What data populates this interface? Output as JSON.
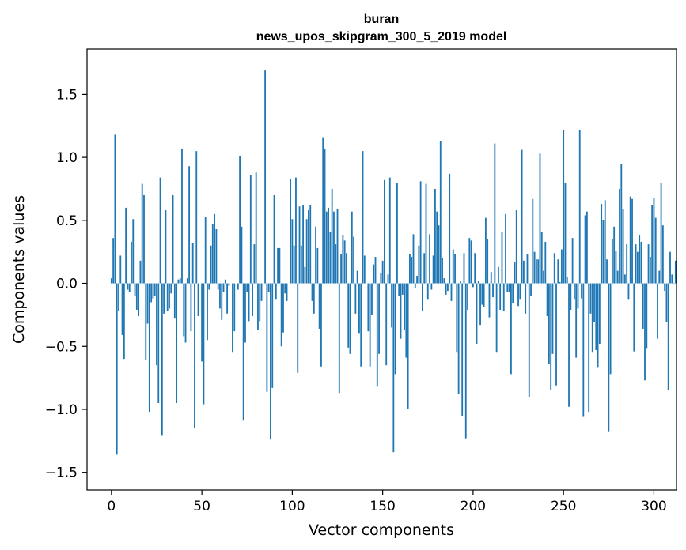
{
  "chart_data": {
    "type": "bar",
    "title": "buran",
    "subtitle": "news_upos_skipgram_300_5_2019 model",
    "xlabel": "Vector components",
    "ylabel": "Components values",
    "xlim": [
      -13.5,
      312.5
    ],
    "ylim": [
      -1.64,
      1.86
    ],
    "xticks": [
      0,
      50,
      100,
      150,
      200,
      250,
      300
    ],
    "xtick_labels": [
      "0",
      "50",
      "100",
      "150",
      "200",
      "250",
      "300"
    ],
    "yticks": [
      -1.5,
      -1.0,
      -0.5,
      0.0,
      0.5,
      1.0,
      1.5
    ],
    "ytick_labels": [
      "−1.5",
      "−1.0",
      "−0.5",
      "0.0",
      "0.5",
      "1.0",
      "1.5"
    ],
    "bar_color": "#1f77b4",
    "values": [
      0.04,
      0.36,
      1.18,
      -1.36,
      -0.22,
      0.22,
      -0.41,
      -0.6,
      0.6,
      -0.05,
      -0.07,
      0.33,
      0.51,
      -0.1,
      -0.21,
      -0.26,
      0.18,
      0.79,
      0.7,
      -0.61,
      -0.32,
      -1.02,
      -0.15,
      -0.12,
      -0.1,
      -0.65,
      -0.95,
      0.84,
      -1.21,
      -0.24,
      0.58,
      -0.22,
      -0.2,
      -0.08,
      0.7,
      -0.28,
      -0.95,
      0.03,
      0.04,
      1.07,
      -0.42,
      -0.47,
      0.04,
      0.93,
      -0.38,
      0.32,
      -1.15,
      1.05,
      -0.26,
      0.0,
      -0.62,
      -0.96,
      0.53,
      -0.45,
      -0.05,
      0.3,
      0.47,
      0.55,
      0.43,
      -0.05,
      -0.2,
      -0.29,
      -0.07,
      0.03,
      -0.24,
      -0.02,
      0.0,
      -0.55,
      -0.38,
      0.0,
      -0.05,
      1.01,
      0.45,
      -1.09,
      -0.47,
      -0.07,
      -0.3,
      0.86,
      -0.26,
      0.31,
      0.88,
      -0.37,
      -0.3,
      -0.14,
      0.0,
      1.69,
      -0.86,
      -0.07,
      -1.24,
      -0.83,
      0.7,
      -0.13,
      0.28,
      0.28,
      -0.5,
      -0.39,
      -0.08,
      -0.14,
      0.0,
      0.83,
      0.51,
      0.3,
      0.84,
      -0.71,
      0.61,
      0.3,
      0.62,
      0.13,
      0.51,
      0.58,
      0.62,
      -0.14,
      -0.24,
      0.45,
      0.28,
      -0.36,
      -0.66,
      1.16,
      1.07,
      0.57,
      0.6,
      0.41,
      0.75,
      0.57,
      0.31,
      0.59,
      -0.87,
      0.23,
      0.38,
      0.34,
      0.24,
      -0.51,
      -0.56,
      0.57,
      0.37,
      -0.24,
      0.1,
      -0.4,
      -0.66,
      1.05,
      0.22,
      0.0,
      -0.38,
      -0.66,
      -0.25,
      0.15,
      0.21,
      -0.82,
      -0.56,
      0.08,
      0.18,
      0.82,
      -0.65,
      0.07,
      0.84,
      -0.35,
      -1.34,
      -0.72,
      0.8,
      -0.1,
      -0.44,
      -0.09,
      -0.37,
      -0.59,
      -1.0,
      0.23,
      0.21,
      0.39,
      -0.04,
      0.06,
      0.3,
      0.81,
      -0.22,
      0.24,
      0.79,
      -0.13,
      0.39,
      -0.05,
      0.22,
      0.75,
      0.57,
      0.46,
      1.13,
      0.2,
      0.04,
      -0.09,
      -0.06,
      0.87,
      -0.14,
      0.27,
      0.23,
      -0.55,
      -0.88,
      0.02,
      -1.05,
      0.24,
      -1.23,
      -0.21,
      0.36,
      0.34,
      -0.03,
      0.24,
      -0.48,
      0.02,
      -0.33,
      -0.17,
      -0.19,
      0.52,
      0.35,
      -0.27,
      0.09,
      -0.11,
      1.11,
      -0.55,
      0.13,
      -0.21,
      0.41,
      -0.22,
      0.55,
      -0.07,
      -0.07,
      -0.72,
      -0.16,
      0.17,
      0.58,
      -0.18,
      -0.13,
      1.06,
      0.18,
      -0.24,
      0.23,
      -0.9,
      -0.1,
      0.67,
      0.25,
      0.19,
      0.19,
      1.03,
      0.41,
      0.1,
      0.33,
      -0.26,
      -0.64,
      -0.85,
      -0.56,
      0.24,
      -0.81,
      0.19,
      0.01,
      0.27,
      1.22,
      0.8,
      0.05,
      -0.98,
      -0.21,
      0.36,
      -0.13,
      -0.59,
      -0.2,
      1.22,
      -0.12,
      -1.06,
      0.54,
      0.57,
      -1.02,
      -0.24,
      -0.55,
      -0.31,
      -0.53,
      -0.67,
      -0.48,
      0.63,
      0.5,
      0.66,
      0.19,
      -1.18,
      -0.72,
      0.35,
      0.45,
      0.26,
      0.1,
      0.75,
      0.95,
      0.59,
      0.07,
      0.31,
      -0.13,
      0.69,
      0.67,
      -0.54,
      0.31,
      0.25,
      0.38,
      0.33,
      -0.36,
      -0.77,
      -0.52,
      0.31,
      0.21,
      0.62,
      0.68,
      0.52,
      -0.44,
      0.1,
      0.8,
      0.46,
      -0.06,
      -0.31,
      -0.85,
      0.25,
      0.07,
      -0.01,
      0.18
    ]
  }
}
